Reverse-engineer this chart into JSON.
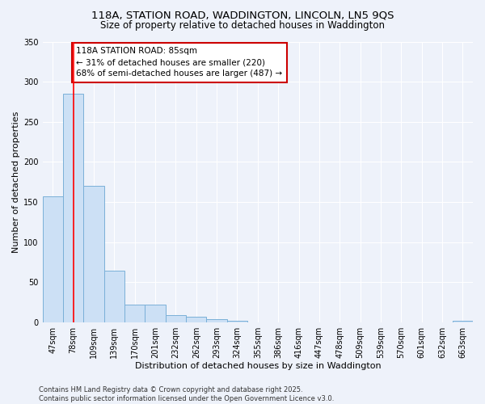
{
  "title_line1": "118A, STATION ROAD, WADDINGTON, LINCOLN, LN5 9QS",
  "title_line2": "Size of property relative to detached houses in Waddington",
  "xlabel": "Distribution of detached houses by size in Waddington",
  "ylabel": "Number of detached properties",
  "categories": [
    "47sqm",
    "78sqm",
    "109sqm",
    "139sqm",
    "170sqm",
    "201sqm",
    "232sqm",
    "262sqm",
    "293sqm",
    "324sqm",
    "355sqm",
    "386sqm",
    "416sqm",
    "447sqm",
    "478sqm",
    "509sqm",
    "539sqm",
    "570sqm",
    "601sqm",
    "632sqm",
    "663sqm"
  ],
  "values": [
    157,
    285,
    170,
    65,
    22,
    22,
    9,
    7,
    4,
    2,
    0,
    0,
    0,
    0,
    0,
    0,
    0,
    0,
    0,
    0,
    2
  ],
  "bar_color": "#cce0f5",
  "bar_edge_color": "#7ab0d8",
  "red_line_x": 1.0,
  "annotation_text_line1": "118A STATION ROAD: 85sqm",
  "annotation_text_line2": "← 31% of detached houses are smaller (220)",
  "annotation_text_line3": "68% of semi-detached houses are larger (487) →",
  "annotation_box_color": "#ffffff",
  "annotation_box_edge": "#cc0000",
  "footnote": "Contains HM Land Registry data © Crown copyright and database right 2025.\nContains public sector information licensed under the Open Government Licence v3.0.",
  "ylim": [
    0,
    350
  ],
  "yticks": [
    0,
    50,
    100,
    150,
    200,
    250,
    300,
    350
  ],
  "background_color": "#eef2fa",
  "grid_color": "#ffffff",
  "title_fontsize": 9.5,
  "subtitle_fontsize": 8.5,
  "axis_label_fontsize": 8,
  "tick_fontsize": 7,
  "annotation_fontsize": 7.5,
  "footnote_fontsize": 6
}
